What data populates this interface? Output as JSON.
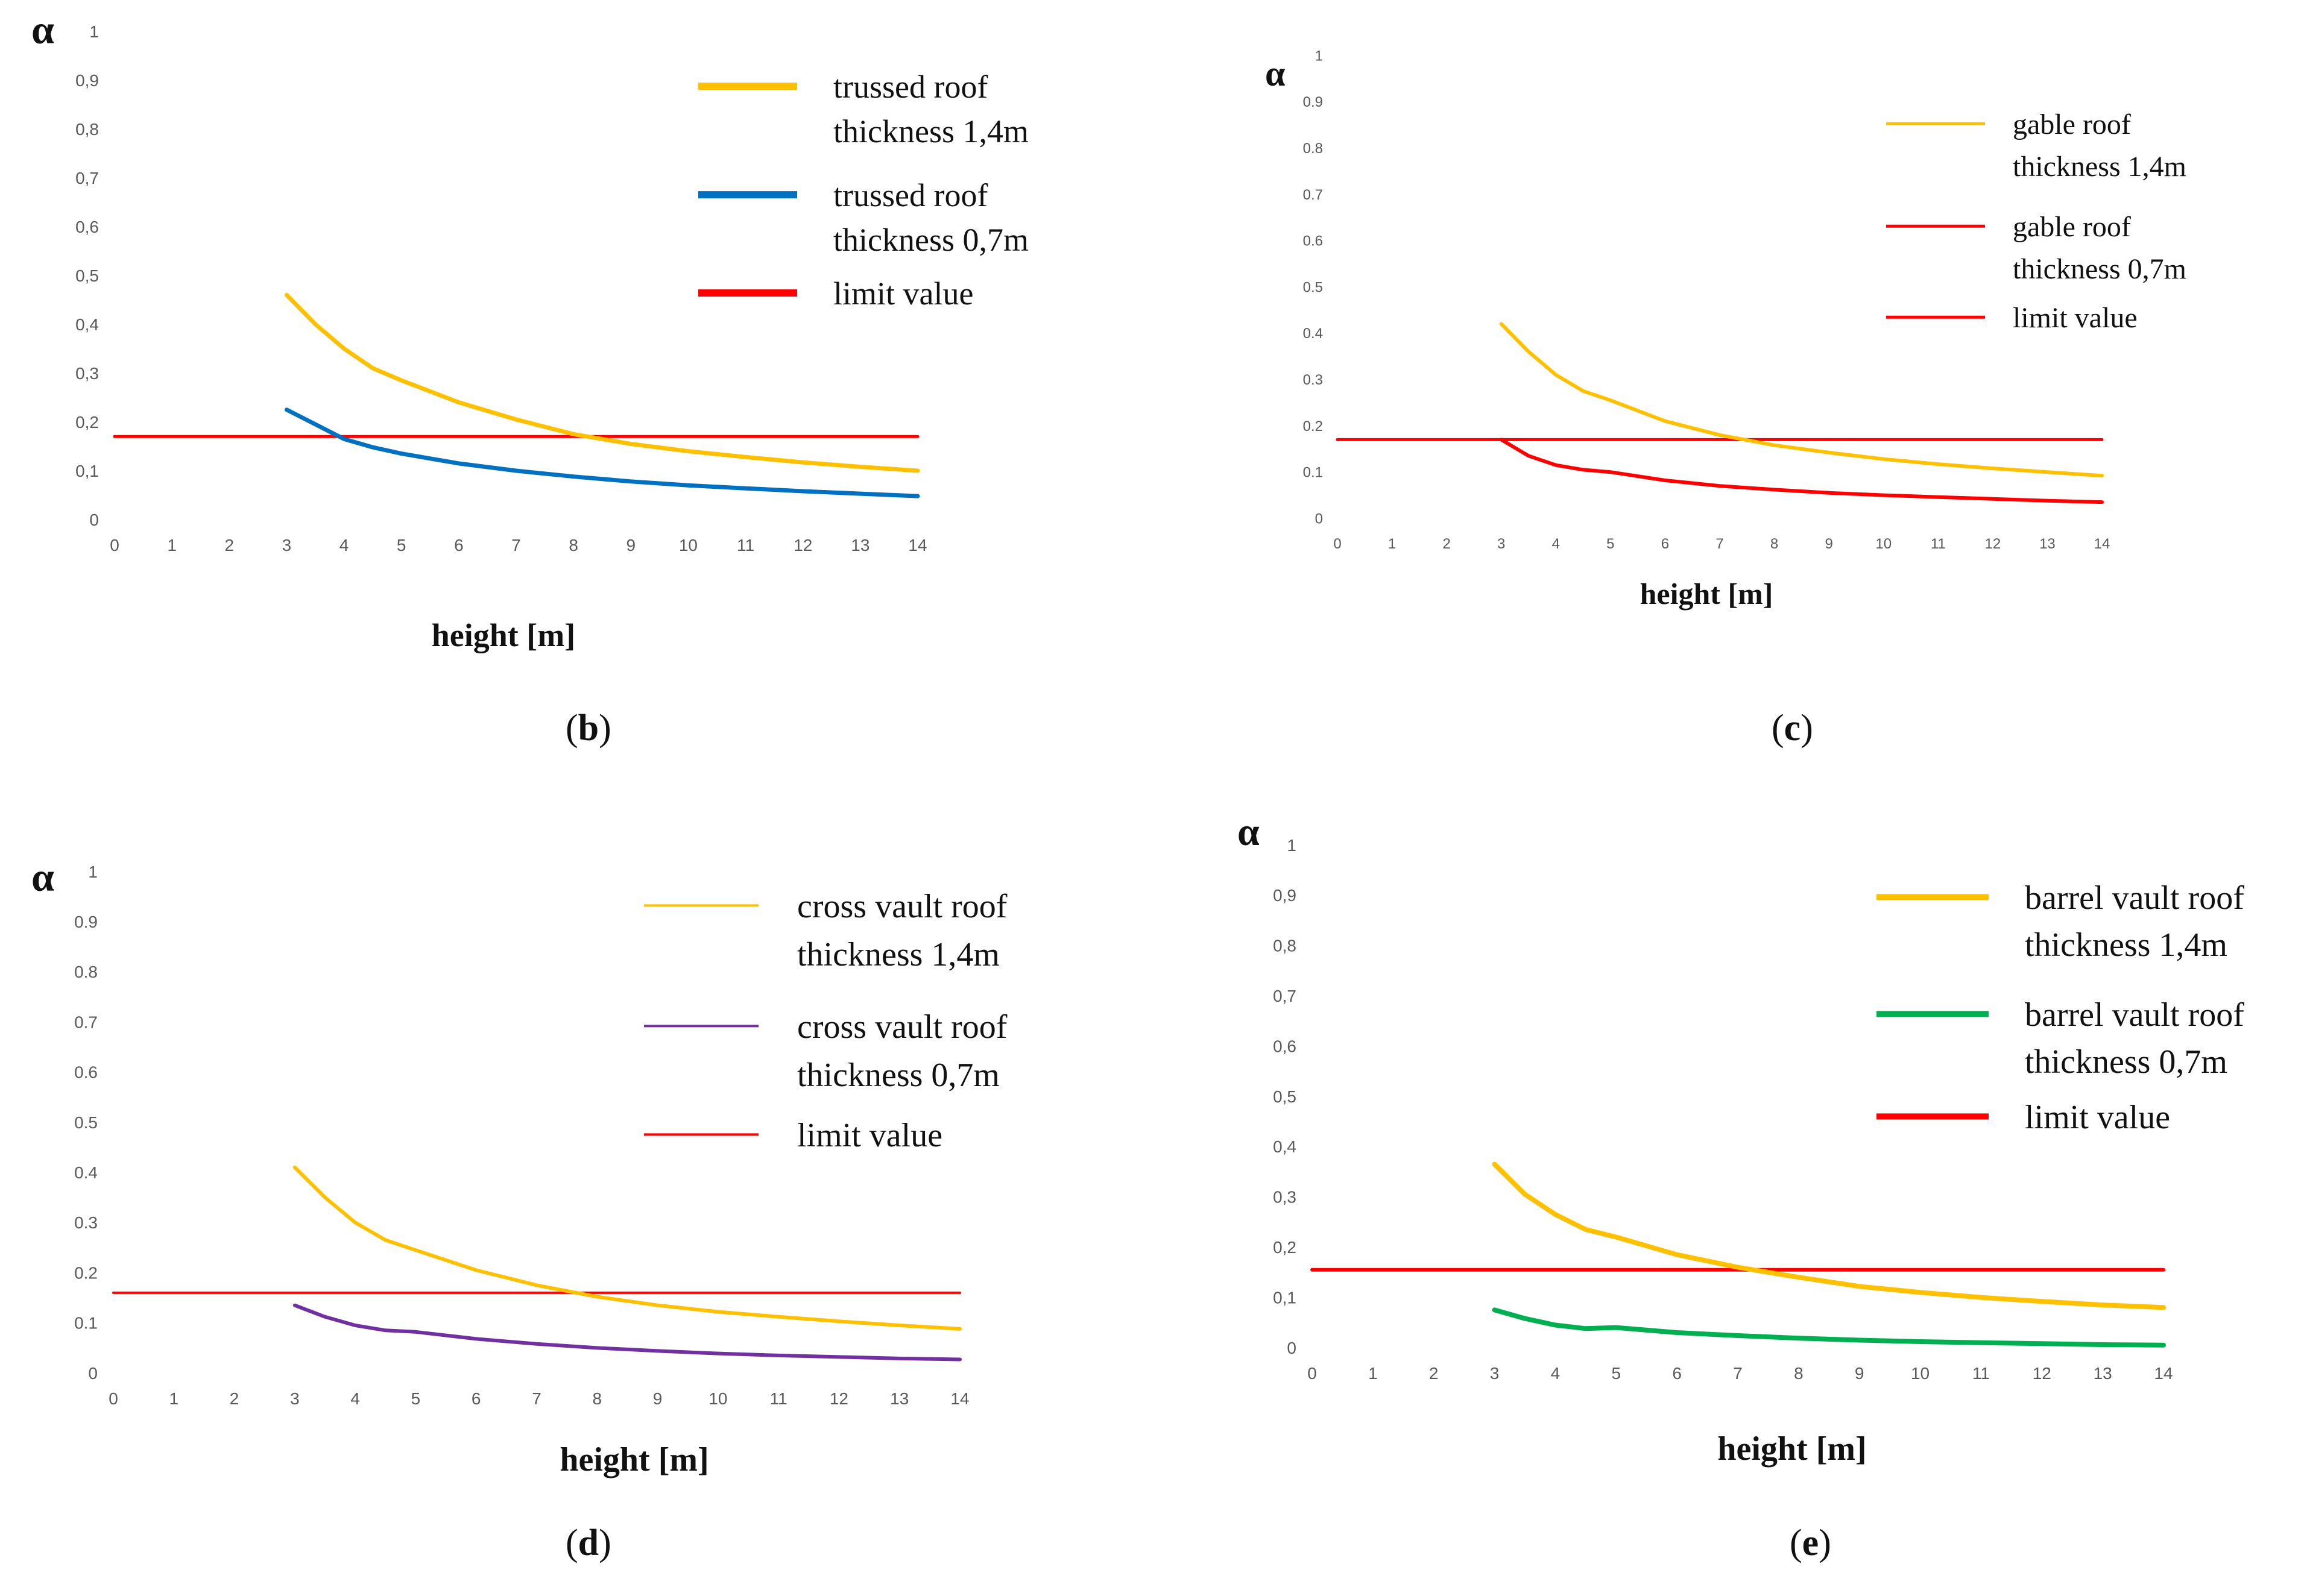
{
  "panels": [
    {
      "id": "b",
      "caption_prefix": "(",
      "caption_letter": "b",
      "caption_suffix": ")",
      "chart_data": {
        "type": "line",
        "ylabel": "α",
        "xlabel": "height [m]",
        "xlim": [
          0,
          14
        ],
        "ylim": [
          0,
          1
        ],
        "x_ticks": [
          "0",
          "1",
          "2",
          "3",
          "4",
          "5",
          "6",
          "7",
          "8",
          "9",
          "10",
          "11",
          "12",
          "13",
          "14"
        ],
        "y_ticks": [
          "0",
          "0,1",
          "0,2",
          "0,3",
          "0,4",
          "0,5",
          "0,6",
          "0,7",
          "0,8",
          "0,9",
          "1"
        ],
        "grid": false,
        "legend_position": "top-right",
        "series": [
          {
            "legend": [
              "trussed roof",
              "thickness 1,4m"
            ],
            "color": "#FFC000",
            "x": [
              3,
              3.5,
              4,
              4.5,
              5,
              6,
              7,
              8,
              9,
              10,
              11,
              12,
              13,
              14
            ],
            "y": [
              0.46,
              0.4,
              0.35,
              0.31,
              0.285,
              0.24,
              0.205,
              0.175,
              0.155,
              0.14,
              0.128,
              0.117,
              0.108,
              0.1
            ]
          },
          {
            "legend": [
              "trussed roof",
              "thickness 0,7m"
            ],
            "color": "#0070C0",
            "x": [
              3,
              3.5,
              4,
              4.5,
              5,
              6,
              7,
              8,
              9,
              10,
              11,
              12,
              13,
              14
            ],
            "y": [
              0.225,
              0.195,
              0.165,
              0.148,
              0.135,
              0.115,
              0.1,
              0.088,
              0.078,
              0.07,
              0.064,
              0.058,
              0.053,
              0.048
            ]
          },
          {
            "legend": [
              "limit value"
            ],
            "color": "#FF0000",
            "x": [
              0,
              14
            ],
            "y": [
              0.17,
              0.17
            ]
          }
        ]
      }
    },
    {
      "id": "c",
      "caption_prefix": "(",
      "caption_letter": "c",
      "caption_suffix": ")",
      "chart_data": {
        "type": "line",
        "ylabel": "α",
        "xlabel": "height [m]",
        "xlim": [
          0,
          14
        ],
        "ylim": [
          0,
          1
        ],
        "x_ticks": [
          "0",
          "1",
          "2",
          "3",
          "4",
          "5",
          "6",
          "7",
          "8",
          "9",
          "10",
          "11",
          "12",
          "13",
          "14"
        ],
        "y_ticks": [
          "0",
          "0.1",
          "0.2",
          "0.3",
          "0.4",
          "0.5",
          "0.6",
          "0.7",
          "0.8",
          "0.9",
          "1"
        ],
        "grid": false,
        "legend_position": "top-right",
        "series": [
          {
            "legend": [
              "gable roof",
              "thickness 1,4m"
            ],
            "color": "#FFC000",
            "x": [
              3,
              3.5,
              4,
              4.5,
              5,
              6,
              7,
              8,
              9,
              10,
              11,
              12,
              13,
              14
            ],
            "y": [
              0.42,
              0.36,
              0.31,
              0.275,
              0.255,
              0.21,
              0.18,
              0.158,
              0.142,
              0.128,
              0.117,
              0.108,
              0.1,
              0.092
            ]
          },
          {
            "legend": [
              "gable roof",
              "thickness 0,7m"
            ],
            "color": "#FF0000",
            "x": [
              3,
              3.5,
              4,
              4.5,
              5,
              6,
              7,
              8,
              9,
              10,
              11,
              12,
              13,
              14
            ],
            "y": [
              0.17,
              0.135,
              0.115,
              0.105,
              0.1,
              0.082,
              0.07,
              0.062,
              0.055,
              0.05,
              0.046,
              0.042,
              0.038,
              0.035
            ]
          },
          {
            "legend": [
              "limit value"
            ],
            "color": "#FF0000",
            "x": [
              0,
              14
            ],
            "y": [
              0.17,
              0.17
            ]
          }
        ]
      }
    },
    {
      "id": "d",
      "caption_prefix": "(",
      "caption_letter": "d",
      "caption_suffix": ")",
      "chart_data": {
        "type": "line",
        "ylabel": "α",
        "xlabel": "height [m]",
        "xlim": [
          0,
          14
        ],
        "ylim": [
          0,
          1
        ],
        "x_ticks": [
          "0",
          "1",
          "2",
          "3",
          "4",
          "5",
          "6",
          "7",
          "8",
          "9",
          "10",
          "11",
          "12",
          "13",
          "14"
        ],
        "y_ticks": [
          "0",
          "0.1",
          "0.2",
          "0.3",
          "0.4",
          "0.5",
          "0.6",
          "0.7",
          "0.8",
          "0.9",
          "1"
        ],
        "grid": false,
        "legend_position": "top-right",
        "series": [
          {
            "legend": [
              "cross vault roof",
              "thickness 1,4m"
            ],
            "color": "#FFC000",
            "x": [
              3,
              3.5,
              4,
              4.5,
              5,
              6,
              7,
              8,
              9,
              10,
              11,
              12,
              13,
              14
            ],
            "y": [
              0.41,
              0.35,
              0.3,
              0.265,
              0.245,
              0.205,
              0.175,
              0.152,
              0.135,
              0.122,
              0.112,
              0.103,
              0.095,
              0.088
            ]
          },
          {
            "legend": [
              "cross vault roof",
              "thickness 0,7m"
            ],
            "color": "#7030A0",
            "x": [
              3,
              3.5,
              4,
              4.5,
              5,
              6,
              7,
              8,
              9,
              10,
              11,
              12,
              13,
              14
            ],
            "y": [
              0.135,
              0.112,
              0.095,
              0.085,
              0.082,
              0.068,
              0.058,
              0.05,
              0.044,
              0.039,
              0.035,
              0.032,
              0.029,
              0.027
            ]
          },
          {
            "legend": [
              "limit value"
            ],
            "color": "#FF0000",
            "x": [
              0,
              14
            ],
            "y": [
              0.16,
              0.16
            ]
          }
        ]
      }
    },
    {
      "id": "e",
      "caption_prefix": "(",
      "caption_letter": "e",
      "caption_suffix": ")",
      "chart_data": {
        "type": "line",
        "ylabel": "α",
        "xlabel": "height [m]",
        "xlim": [
          0,
          14
        ],
        "ylim": [
          0,
          1
        ],
        "x_ticks": [
          "0",
          "1",
          "2",
          "3",
          "4",
          "5",
          "6",
          "7",
          "8",
          "9",
          "10",
          "11",
          "12",
          "13",
          "14"
        ],
        "y_ticks": [
          "0",
          "0,1",
          "0,2",
          "0,3",
          "0,4",
          "0,5",
          "0,6",
          "0,7",
          "0,8",
          "0,9",
          "1"
        ],
        "grid": false,
        "legend_position": "top-right",
        "series": [
          {
            "legend": [
              "barrel vault roof",
              "thickness 1,4m"
            ],
            "color": "#FFC000",
            "x": [
              3,
              3.5,
              4,
              4.5,
              5,
              6,
              7,
              8,
              9,
              10,
              11,
              12,
              13,
              14
            ],
            "y": [
              0.365,
              0.305,
              0.265,
              0.235,
              0.22,
              0.185,
              0.16,
              0.14,
              0.122,
              0.11,
              0.1,
              0.092,
              0.085,
              0.08
            ]
          },
          {
            "legend": [
              "barrel vault roof",
              "thickness 0,7m"
            ],
            "color": "#00B050",
            "x": [
              3,
              3.5,
              4,
              4.5,
              5,
              6,
              7,
              8,
              9,
              10,
              11,
              12,
              13,
              14
            ],
            "y": [
              0.075,
              0.058,
              0.045,
              0.038,
              0.04,
              0.03,
              0.024,
              0.019,
              0.015,
              0.012,
              0.01,
              0.008,
              0.006,
              0.005
            ]
          },
          {
            "legend": [
              "limit value"
            ],
            "color": "#FF0000",
            "x": [
              0,
              14
            ],
            "y": [
              0.155,
              0.155
            ]
          }
        ]
      }
    }
  ]
}
